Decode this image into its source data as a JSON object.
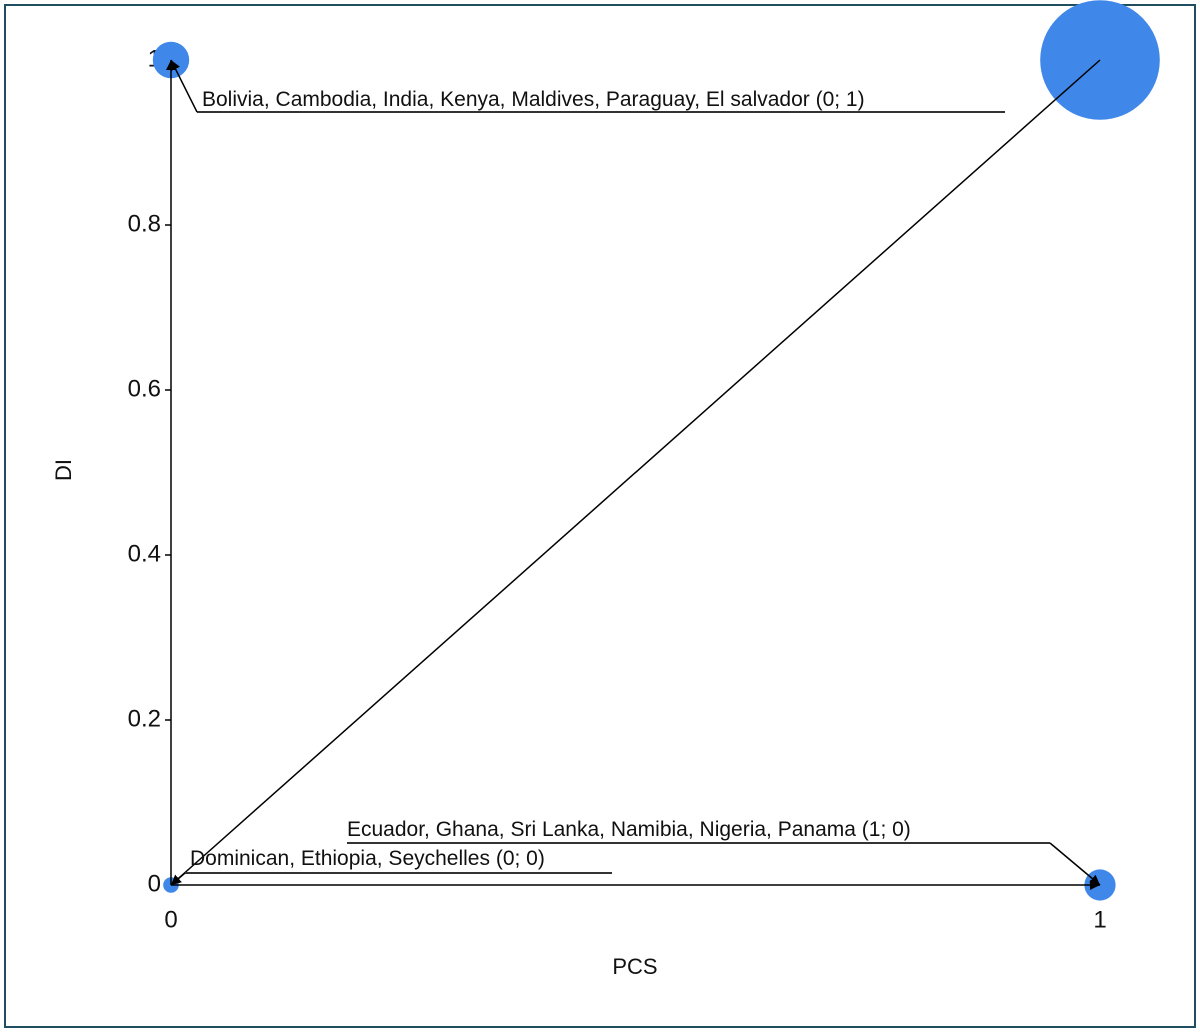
{
  "chart_data": {
    "type": "scatter",
    "x_label": "PCS",
    "y_label": "DI",
    "xlim": [
      0,
      1
    ],
    "ylim": [
      0,
      1
    ],
    "xticks": [
      0,
      1
    ],
    "yticks": [
      0,
      0.2,
      0.4,
      0.6,
      0.8,
      1
    ],
    "series": [
      {
        "color": "#3f88ea",
        "x": [
          0,
          1,
          0,
          1
        ],
        "values": [
          1,
          1,
          0,
          0
        ],
        "sizes": [
          7,
          23,
          3,
          6
        ],
        "point_labels": [
          "Bolivia, Cambodia, India, Kenya, Maldives, Paraguay, El salvador (0; 1)",
          null,
          "Dominican, Ethiopia, Seychelles (0; 0)",
          "Ecuador, Ghana, Sri Lanka, Namibia, Nigeria, Panama (1; 0)"
        ]
      }
    ]
  }
}
